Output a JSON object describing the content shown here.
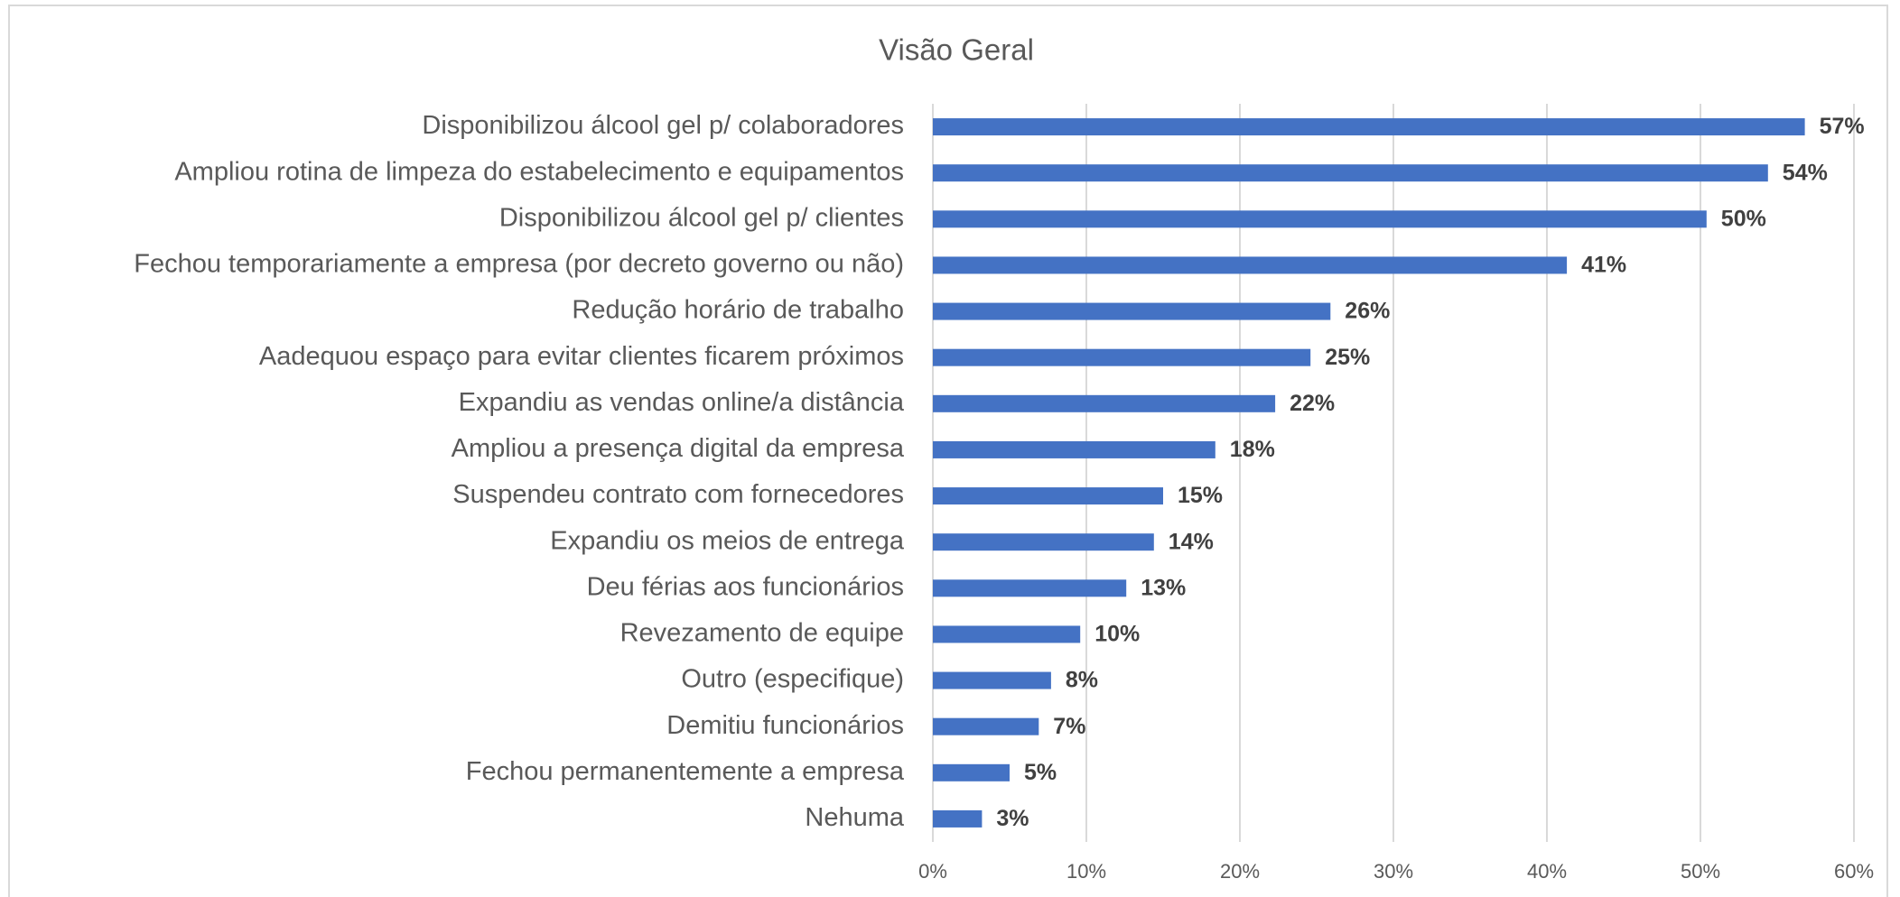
{
  "chart_data": {
    "type": "barh",
    "title": "Visão Geral",
    "categories": [
      "Disponibilizou álcool gel p/ colaboradores",
      "Ampliou rotina de limpeza do estabelecimento e equipamentos",
      "Disponibilizou álcool gel p/ clientes",
      "Fechou temporariamente a empresa (por decreto governo ou não)",
      "Redução horário de trabalho",
      "Aadequou espaço para evitar clientes ficarem próximos",
      "Expandiu as vendas online/a distância",
      "Ampliou a presença digital da empresa",
      "Suspendeu contrato com fornecedores",
      "Expandiu os meios de entrega",
      "Deu férias aos funcionários",
      "Revezamento de equipe",
      "Outro (especifique)",
      "Demitiu funcionários",
      "Fechou permanentemente a empresa",
      "Nehuma"
    ],
    "values": [
      56.8,
      54.4,
      50.4,
      41.3,
      25.9,
      24.6,
      22.3,
      18.4,
      15.0,
      14.4,
      12.6,
      9.6,
      7.7,
      6.9,
      5.0,
      3.2
    ],
    "value_labels": [
      "57%",
      "54%",
      "50%",
      "41%",
      "26%",
      "25%",
      "22%",
      "18%",
      "15%",
      "14%",
      "13%",
      "10%",
      "8%",
      "7%",
      "5%",
      "3%"
    ],
    "color": "#4472c4",
    "xlim": [
      0,
      60
    ],
    "xticks": [
      {
        "value": 0,
        "label": "0%"
      },
      {
        "value": 10,
        "label": "10%"
      },
      {
        "value": 20,
        "label": "20%"
      },
      {
        "value": 30,
        "label": "30%"
      },
      {
        "value": 40,
        "label": "40%"
      },
      {
        "value": 50,
        "label": "50%"
      },
      {
        "value": 60,
        "label": "60%"
      }
    ],
    "grid": true
  }
}
